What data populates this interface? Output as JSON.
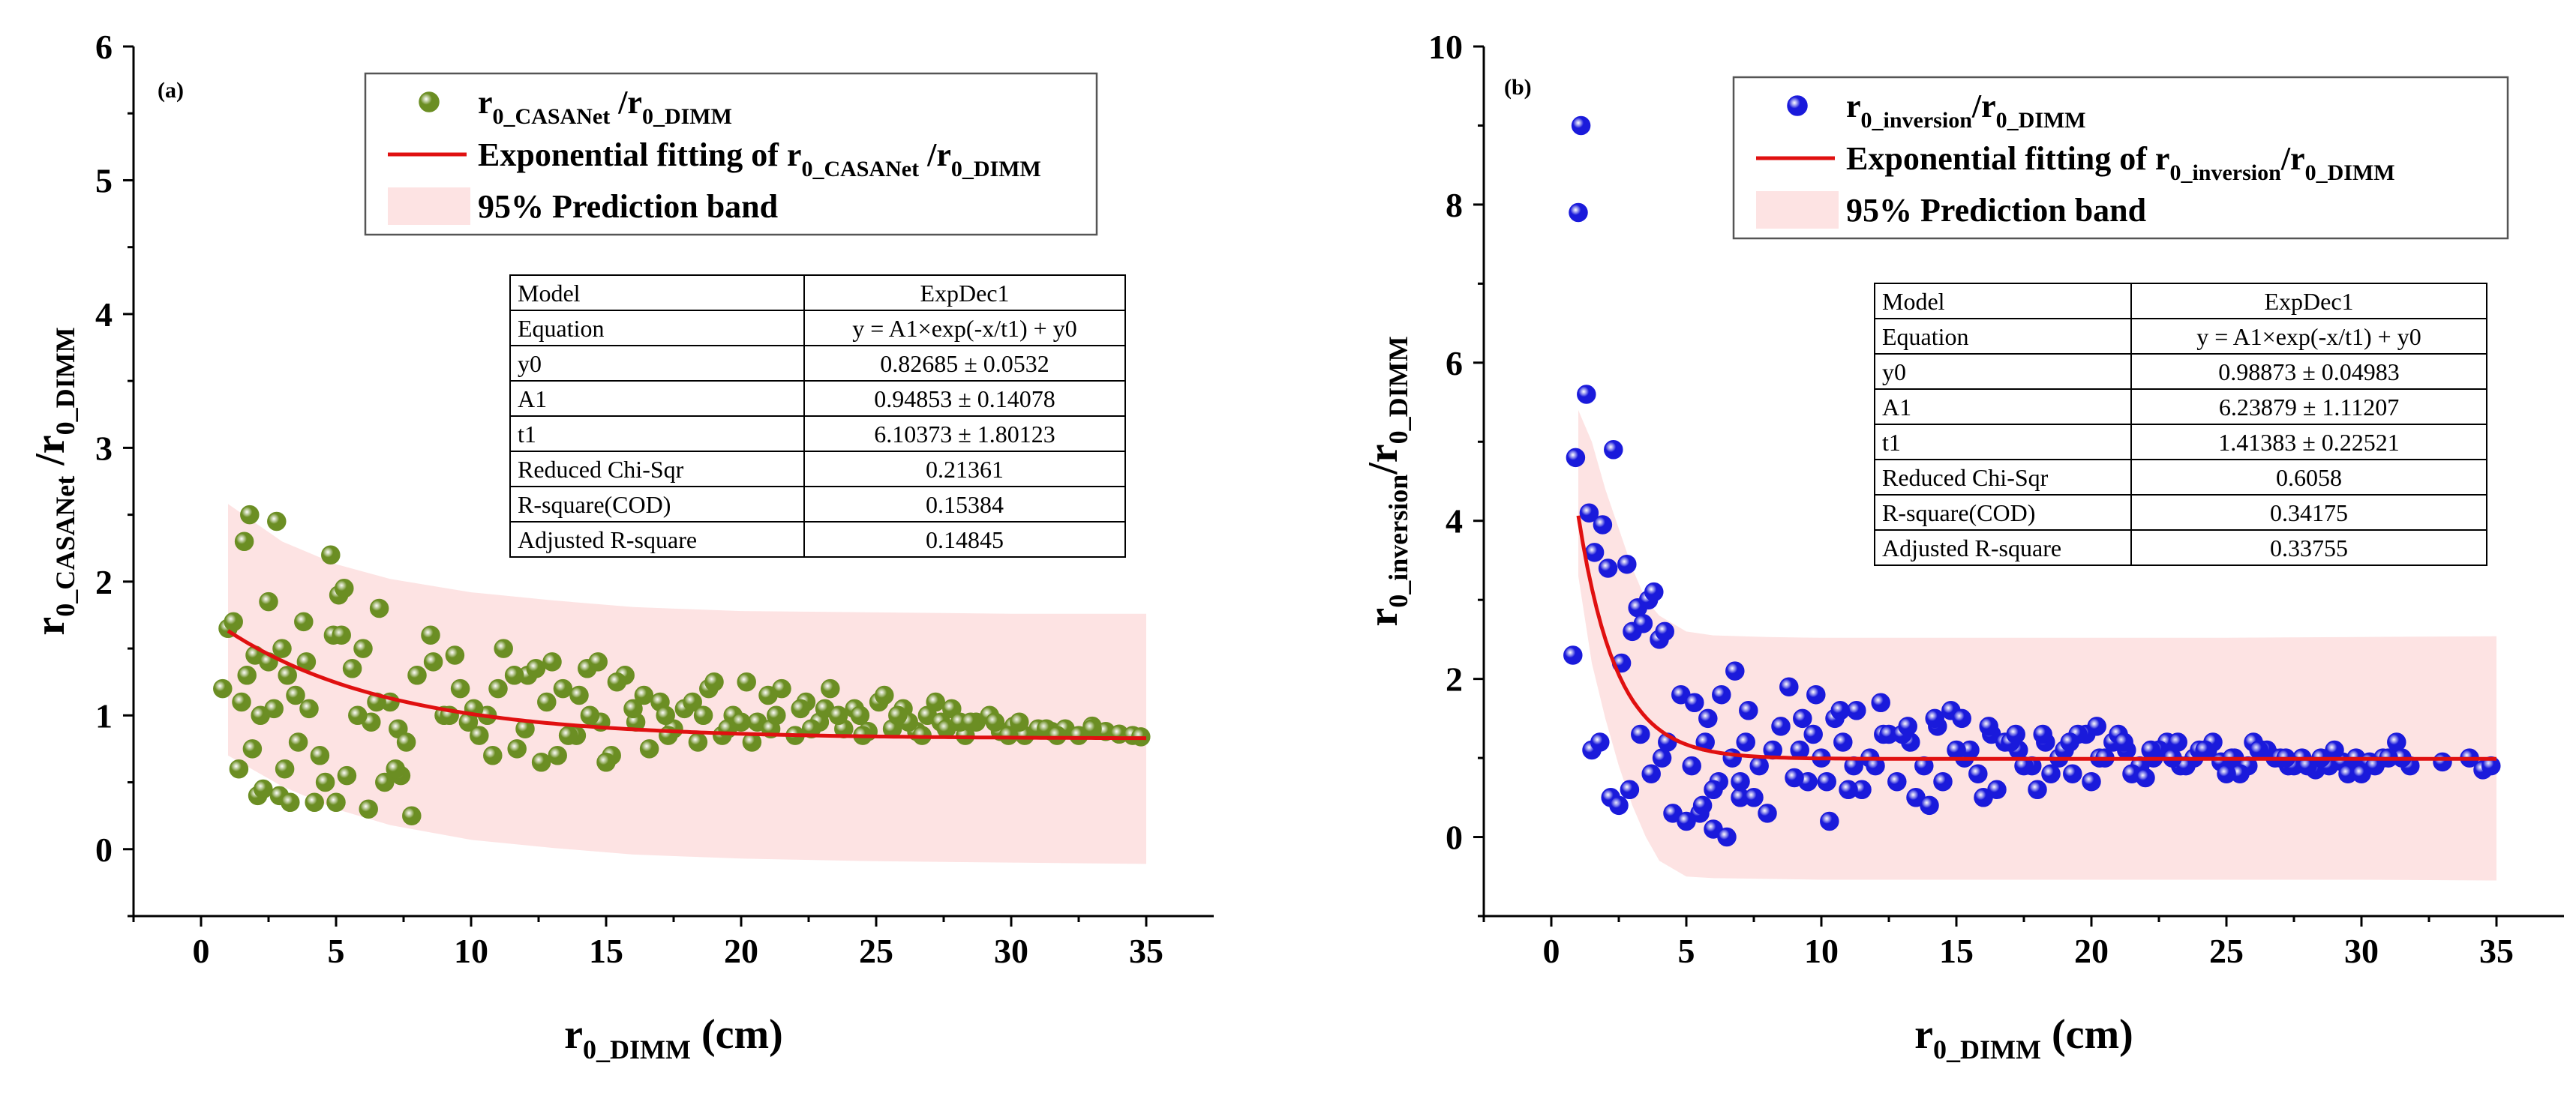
{
  "chart_data": [
    {
      "type": "scatter",
      "panel_label": "(a)",
      "title": "",
      "xlabel": {
        "main": "r",
        "sub": "0_DIMM",
        "suffix": " (cm)"
      },
      "ylabel": {
        "parts": [
          {
            "t": "r"
          },
          {
            "t": "0_CASANet",
            "sub": true
          },
          {
            "t": " /r"
          },
          {
            "t": "0_DIMM",
            "sub": true
          }
        ]
      },
      "xlim": [
        -2.5,
        37.5
      ],
      "ylim": [
        -0.5,
        6
      ],
      "xticks": [
        0,
        5,
        10,
        15,
        20,
        25,
        30,
        35
      ],
      "yticks": [
        0,
        1,
        2,
        3,
        4,
        5,
        6
      ],
      "point_color": "#6b8e23",
      "legend": {
        "scatter_label": [
          {
            "t": "r"
          },
          {
            "t": "0_CASANet",
            "sub": true
          },
          {
            "t": " /r"
          },
          {
            "t": "0_DIMM",
            "sub": true
          }
        ],
        "fit_label": [
          {
            "t": "Exponential fitting of r"
          },
          {
            "t": "0_CASANet",
            "sub": true
          },
          {
            "t": " /r"
          },
          {
            "t": "0_DIMM",
            "sub": true
          }
        ],
        "band_label": [
          {
            "t": "95% Prediction band"
          }
        ]
      },
      "fit": {
        "model": "ExpDec1",
        "y0": 0.82685,
        "A1": 0.94853,
        "t1": 6.10373,
        "x_range": [
          1,
          35
        ]
      },
      "band": {
        "x": [
          1,
          3,
          5,
          7,
          10,
          13,
          16,
          20,
          25,
          30,
          35
        ],
        "upper": [
          2.58,
          2.3,
          2.13,
          2.02,
          1.92,
          1.86,
          1.81,
          1.78,
          1.77,
          1.76,
          1.76
        ],
        "lower": [
          0.7,
          0.47,
          0.3,
          0.18,
          0.07,
          0.01,
          -0.04,
          -0.07,
          -0.09,
          -0.1,
          -0.11
        ]
      },
      "table": [
        [
          "Model",
          "ExpDec1"
        ],
        [
          "Equation",
          "y = A1×exp(-x/t1) + y0"
        ],
        [
          "y0",
          "0.82685 ± 0.0532"
        ],
        [
          "A1",
          "0.94853 ± 0.14078"
        ],
        [
          "t1",
          "6.10373 ± 1.80123"
        ],
        [
          "Reduced Chi-Sqr",
          "0.21361"
        ],
        [
          "R-square(COD)",
          "0.15384"
        ],
        [
          "Adjusted R-square",
          "0.14845"
        ]
      ],
      "points": {
        "x": [
          0.8,
          1.0,
          1.2,
          1.5,
          1.6,
          1.8,
          2.0,
          2.2,
          2.5,
          2.8,
          3.0,
          3.2,
          3.5,
          3.8,
          4.0,
          1.4,
          2.1,
          2.9,
          3.3,
          4.4,
          4.8,
          5.1,
          5.3,
          5.6,
          6.0,
          6.3,
          6.6,
          7.0,
          7.3,
          7.6,
          8.0,
          8.5,
          9.0,
          9.4,
          9.9,
          10.3,
          10.8,
          11.2,
          11.7,
          12.1,
          12.6,
          13.0,
          13.4,
          13.9,
          14.3,
          14.8,
          15.2,
          15.7,
          16.1,
          16.6,
          17.0,
          17.5,
          17.9,
          18.4,
          18.8,
          19.3,
          19.7,
          20.2,
          20.6,
          21.1,
          21.5,
          22.0,
          22.4,
          22.9,
          23.3,
          23.8,
          24.2,
          24.7,
          25.1,
          25.6,
          26.0,
          26.5,
          26.9,
          27.4,
          27.8,
          28.3,
          28.7,
          29.2,
          29.6,
          30.1,
          30.5,
          31.0,
          31.5,
          32.0,
          32.5,
          33.0,
          33.5,
          34.0,
          34.5,
          34.8,
          1.9,
          2.3,
          3.1,
          4.2,
          4.6,
          5.0,
          5.4,
          6.2,
          6.8,
          7.4,
          2.5,
          3.6,
          4.9,
          5.8,
          7.2,
          8.6,
          9.6,
          10.6,
          11.6,
          12.4,
          13.2,
          14.0,
          14.7,
          15.4,
          16.4,
          17.2,
          18.2,
          19.0,
          20.0,
          21.0,
          22.2,
          23.1,
          24.4,
          25.3,
          26.2,
          27.2,
          28.1,
          29.4,
          30.3,
          31.3,
          1.7,
          2.7,
          3.9,
          5.2,
          6.5,
          7.8,
          9.2,
          10.1,
          11.0,
          12.0,
          12.8,
          13.6,
          14.4,
          15.0,
          16.0,
          17.3,
          18.6,
          19.5,
          20.4,
          21.3,
          22.6,
          23.6,
          24.5,
          25.8,
          26.7,
          27.6,
          28.5,
          29.9,
          31.7,
          33.0
        ],
        "y": [
          1.2,
          1.65,
          1.7,
          1.1,
          2.3,
          2.5,
          1.45,
          1.0,
          1.85,
          2.45,
          1.5,
          1.3,
          1.15,
          1.7,
          1.05,
          0.6,
          0.4,
          0.4,
          0.35,
          0.7,
          2.2,
          1.9,
          1.95,
          1.35,
          1.5,
          0.95,
          1.8,
          1.1,
          0.9,
          0.8,
          1.3,
          1.6,
          1.0,
          1.45,
          0.95,
          0.85,
          0.7,
          1.5,
          0.75,
          1.3,
          0.65,
          1.4,
          1.2,
          0.85,
          1.35,
          0.95,
          0.7,
          1.3,
          0.95,
          0.75,
          1.1,
          0.9,
          1.05,
          0.8,
          1.2,
          0.85,
          1.0,
          1.25,
          0.95,
          0.9,
          1.2,
          0.85,
          1.1,
          0.95,
          1.2,
          0.9,
          1.05,
          0.88,
          1.1,
          0.9,
          1.05,
          0.88,
          1.0,
          0.95,
          1.05,
          0.85,
          0.95,
          1.0,
          0.88,
          0.92,
          0.85,
          0.9,
          0.88,
          0.9,
          0.85,
          0.92,
          0.88,
          0.86,
          0.85,
          0.84,
          0.75,
          0.45,
          0.6,
          0.35,
          0.5,
          0.35,
          0.55,
          0.3,
          0.5,
          0.55,
          1.4,
          0.8,
          1.6,
          1.0,
          0.6,
          1.4,
          1.2,
          1.0,
          1.3,
          1.35,
          0.7,
          1.15,
          1.4,
          1.25,
          1.15,
          1.0,
          1.1,
          1.25,
          0.95,
          1.15,
          1.05,
          1.05,
          1.0,
          1.15,
          0.95,
          1.1,
          0.95,
          0.95,
          0.95,
          0.9,
          1.3,
          1.05,
          1.4,
          1.6,
          1.1,
          0.25,
          1.0,
          1.05,
          1.2,
          0.9,
          1.1,
          0.85,
          1.0,
          0.65,
          1.05,
          0.85,
          1.0,
          0.9,
          0.8,
          1.0,
          0.9,
          1.0,
          0.85,
          1.0,
          0.85,
          0.9,
          0.95,
          0.85,
          0.85,
          0.9
        ]
      }
    },
    {
      "type": "scatter",
      "panel_label": "(b)",
      "title": "",
      "xlabel": {
        "main": "r",
        "sub": "0_DIMM",
        "suffix": " (cm)"
      },
      "ylabel": {
        "parts": [
          {
            "t": "r"
          },
          {
            "t": "0_inversion",
            "sub": true
          },
          {
            "t": "/r"
          },
          {
            "t": "0_DIMM",
            "sub": true
          }
        ]
      },
      "xlim": [
        -2.5,
        37.5
      ],
      "ylim": [
        -1,
        10
      ],
      "xticks": [
        0,
        5,
        10,
        15,
        20,
        25,
        30,
        35
      ],
      "yticks": [
        0,
        2,
        4,
        6,
        8,
        10
      ],
      "point_color": "#1a1adb",
      "legend": {
        "scatter_label": [
          {
            "t": "r"
          },
          {
            "t": "0_inversion",
            "sub": true
          },
          {
            "t": "/r"
          },
          {
            "t": "0_DIMM",
            "sub": true
          }
        ],
        "fit_label": [
          {
            "t": "Exponential fitting of r"
          },
          {
            "t": "0_inversion",
            "sub": true
          },
          {
            "t": "/r"
          },
          {
            "t": "0_DIMM",
            "sub": true
          }
        ],
        "band_label": [
          {
            "t": "95% Prediction band"
          }
        ]
      },
      "fit": {
        "model": "ExpDec1",
        "y0": 0.98873,
        "A1": 6.23879,
        "t1": 1.41383,
        "x_range": [
          1,
          35
        ]
      },
      "band": {
        "x": [
          1,
          1.5,
          2,
          2.5,
          3,
          3.5,
          4,
          5,
          6,
          8,
          10,
          15,
          20,
          25,
          30,
          35
        ],
        "upper": [
          5.4,
          5.0,
          4.4,
          3.9,
          3.4,
          3.0,
          2.8,
          2.6,
          2.55,
          2.53,
          2.52,
          2.52,
          2.52,
          2.52,
          2.53,
          2.54
        ],
        "lower": [
          3.3,
          2.2,
          1.5,
          0.9,
          0.4,
          0.0,
          -0.3,
          -0.5,
          -0.52,
          -0.53,
          -0.54,
          -0.54,
          -0.54,
          -0.54,
          -0.54,
          -0.55
        ]
      },
      "table": [
        [
          "Model",
          "ExpDec1"
        ],
        [
          "Equation",
          "y = A1×exp(-x/t1) + y0"
        ],
        [
          "y0",
          "0.98873 ± 0.04983"
        ],
        [
          "A1",
          "6.23879 ± 1.11207"
        ],
        [
          "t1",
          "1.41383 ± 0.22521"
        ],
        [
          "Reduced Chi-Sqr",
          "0.6058"
        ],
        [
          "R-square(COD)",
          "0.34175"
        ],
        [
          "Adjusted R-square",
          "0.33755"
        ]
      ],
      "points": {
        "x": [
          1.1,
          1.0,
          1.3,
          0.9,
          1.4,
          2.3,
          1.6,
          1.9,
          2.1,
          2.8,
          3.2,
          3.6,
          4.0,
          2.6,
          3.0,
          3.4,
          3.8,
          4.2,
          0.8,
          1.5,
          1.8,
          2.2,
          2.5,
          2.9,
          3.3,
          3.7,
          4.1,
          4.5,
          5.0,
          5.5,
          6.0,
          6.5,
          7.0,
          7.5,
          8.0,
          4.8,
          5.3,
          5.8,
          6.3,
          6.8,
          7.3,
          8.2,
          8.8,
          9.3,
          9.8,
          10.3,
          10.8,
          11.3,
          11.8,
          12.3,
          12.8,
          13.3,
          13.8,
          14.3,
          14.8,
          15.3,
          15.8,
          16.3,
          16.8,
          17.3,
          17.8,
          18.3,
          18.8,
          19.3,
          19.8,
          20.3,
          20.8,
          21.3,
          21.8,
          22.3,
          22.8,
          23.3,
          23.8,
          24.3,
          24.8,
          25.3,
          25.8,
          26.3,
          26.8,
          27.3,
          27.8,
          28.3,
          28.8,
          29.3,
          29.8,
          30.3,
          30.8,
          31.3,
          31.8,
          33.0,
          34.0,
          34.5,
          34.8,
          9.5,
          10.5,
          11.5,
          12.5,
          13.5,
          14.5,
          15.5,
          16.5,
          17.5,
          18.5,
          19.5,
          20.5,
          21.5,
          22.5,
          23.5,
          24.5,
          25.5,
          26.5,
          27.5,
          28.5,
          29.5,
          30.5,
          31.5,
          9.0,
          10.0,
          11.0,
          12.0,
          13.0,
          14.0,
          15.0,
          16.0,
          17.0,
          18.0,
          19.0,
          20.0,
          21.0,
          22.0,
          23.0,
          24.0,
          25.0,
          26.0,
          27.0,
          28.0,
          29.0,
          30.0,
          31.0,
          5.2,
          5.7,
          6.2,
          6.7,
          7.2,
          7.7,
          8.5,
          9.2,
          9.7,
          10.2,
          10.7,
          11.2,
          12.2,
          13.2,
          14.2,
          15.2,
          16.2,
          17.2,
          18.2,
          19.2,
          20.2,
          21.2,
          22.2,
          23.2,
          24.2,
          25.2,
          26.2,
          27.2,
          6.0,
          7.0,
          4.3,
          5.6
        ],
        "y": [
          9.0,
          7.9,
          5.6,
          4.8,
          4.1,
          4.9,
          3.6,
          3.95,
          3.4,
          3.45,
          2.9,
          3.0,
          2.5,
          2.2,
          2.6,
          2.7,
          3.1,
          2.6,
          2.3,
          1.1,
          1.2,
          0.5,
          0.4,
          0.6,
          1.3,
          0.8,
          1.0,
          0.3,
          0.2,
          0.3,
          0.1,
          0.0,
          0.5,
          0.5,
          0.3,
          1.8,
          1.7,
          1.5,
          1.8,
          2.1,
          1.6,
          1.1,
          1.9,
          1.5,
          1.8,
          0.2,
          1.2,
          1.6,
          1.0,
          1.3,
          0.7,
          1.2,
          0.9,
          1.4,
          1.6,
          1.0,
          0.8,
          1.3,
          1.2,
          1.1,
          0.9,
          1.2,
          1.0,
          0.8,
          1.3,
          1.0,
          1.2,
          1.1,
          0.9,
          1.0,
          1.2,
          0.9,
          1.0,
          1.1,
          0.95,
          1.0,
          0.9,
          1.1,
          1.0,
          0.9,
          1.0,
          0.85,
          0.9,
          0.95,
          1.0,
          0.95,
          1.0,
          1.2,
          0.9,
          0.95,
          1.0,
          0.85,
          0.9,
          0.7,
          1.5,
          0.6,
          1.3,
          0.5,
          0.7,
          1.1,
          0.6,
          0.9,
          0.8,
          1.3,
          1.0,
          0.8,
          1.1,
          0.9,
          1.2,
          0.8,
          1.1,
          0.9,
          1.0,
          0.8,
          0.9,
          1.0,
          0.75,
          1.0,
          0.6,
          0.9,
          1.3,
          0.4,
          1.1,
          0.5,
          1.2,
          0.6,
          1.1,
          0.7,
          1.3,
          0.75,
          1.0,
          1.1,
          0.8,
          1.2,
          1.0,
          0.9,
          1.1,
          0.8,
          1.0,
          0.9,
          1.2,
          0.7,
          1.0,
          1.2,
          0.9,
          1.4,
          1.1,
          1.3,
          0.7,
          1.6,
          0.9,
          1.7,
          1.4,
          1.5,
          1.5,
          1.4,
          1.3,
          1.3,
          1.2,
          1.4,
          1.2,
          1.1,
          1.2,
          1.1,
          1.0,
          1.1,
          1.0,
          0.6,
          0.7,
          1.2,
          0.4
        ]
      }
    }
  ]
}
